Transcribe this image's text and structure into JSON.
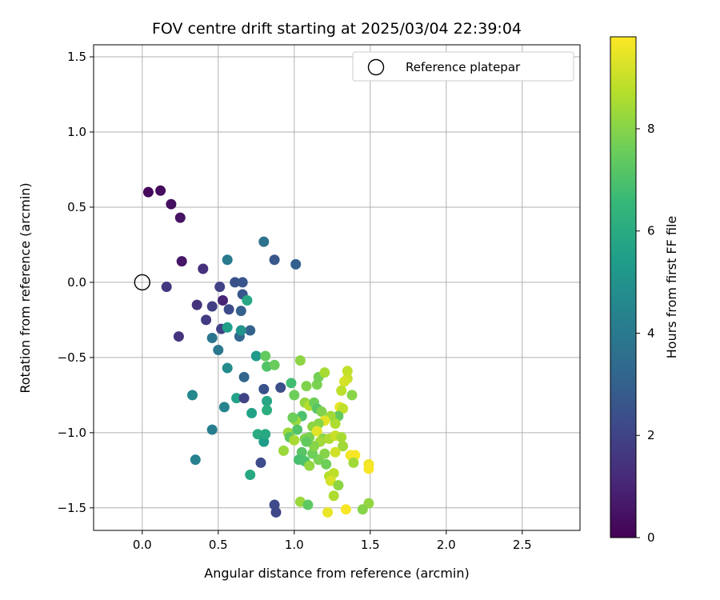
{
  "chart_data": {
    "type": "scatter",
    "title": "FOV centre drift starting at 2025/03/04 22:39:04",
    "xlabel": "Angular distance from reference (arcmin)",
    "ylabel": "Rotation from reference (arcmin)",
    "xlim": [
      -0.32,
      2.88
    ],
    "ylim": [
      -1.65,
      1.58
    ],
    "xticks": [
      "0.0",
      "0.5",
      "1.0",
      "1.5",
      "2.0",
      "2.5"
    ],
    "xtick_values": [
      0,
      0.5,
      1,
      1.5,
      2,
      2.5
    ],
    "yticks": [
      "1.5",
      "1.0",
      "0.5",
      "0.0",
      "−0.5",
      "−1.0",
      "−1.5"
    ],
    "ytick_values": [
      1.5,
      1.0,
      0.5,
      0.0,
      -0.5,
      -1.0,
      -1.5
    ],
    "grid": true,
    "legend": {
      "placement": "top-right",
      "entries": [
        "Reference platepar"
      ]
    },
    "reference_point": {
      "x": 0.0,
      "y": 0.0
    },
    "colorbar": {
      "label": "Hours from first FF file",
      "range": [
        0,
        9.8
      ],
      "ticks": [
        "0",
        "2",
        "4",
        "6",
        "8"
      ],
      "tick_values": [
        0,
        2,
        4,
        6,
        8
      ],
      "colormap": [
        "#440154",
        "#482878",
        "#3e4989",
        "#31688e",
        "#26828e",
        "#1f9e89",
        "#35b779",
        "#6ece58",
        "#b5de2b",
        "#fde725"
      ]
    },
    "points": [
      {
        "x": 0.04,
        "y": 0.6,
        "c": 0.2
      },
      {
        "x": 0.12,
        "y": 0.61,
        "c": 0.3
      },
      {
        "x": 0.19,
        "y": 0.52,
        "c": 0.4
      },
      {
        "x": 0.25,
        "y": 0.43,
        "c": 0.5
      },
      {
        "x": 0.26,
        "y": 0.14,
        "c": 0.6
      },
      {
        "x": 0.16,
        "y": -0.03,
        "c": 1.6
      },
      {
        "x": 0.4,
        "y": 0.09,
        "c": 1.4
      },
      {
        "x": 0.36,
        "y": -0.15,
        "c": 1.5
      },
      {
        "x": 0.42,
        "y": -0.25,
        "c": 1.7
      },
      {
        "x": 0.46,
        "y": -0.16,
        "c": 1.8
      },
      {
        "x": 0.24,
        "y": -0.36,
        "c": 1.5
      },
      {
        "x": 0.51,
        "y": -0.03,
        "c": 1.9
      },
      {
        "x": 0.53,
        "y": -0.12,
        "c": 1.0
      },
      {
        "x": 0.52,
        "y": -0.31,
        "c": 1.9
      },
      {
        "x": 0.57,
        "y": -0.18,
        "c": 2.3
      },
      {
        "x": 0.61,
        "y": 0.0,
        "c": 2.5
      },
      {
        "x": 0.66,
        "y": 0.0,
        "c": 2.6
      },
      {
        "x": 0.66,
        "y": -0.08,
        "c": 2.6
      },
      {
        "x": 0.65,
        "y": -0.19,
        "c": 3.0
      },
      {
        "x": 0.56,
        "y": 0.15,
        "c": 4.0
      },
      {
        "x": 0.46,
        "y": -0.37,
        "c": 3.8
      },
      {
        "x": 0.5,
        "y": -0.45,
        "c": 3.9
      },
      {
        "x": 0.64,
        "y": -0.36,
        "c": 3.2
      },
      {
        "x": 0.71,
        "y": -0.32,
        "c": 3.1
      },
      {
        "x": 0.69,
        "y": -0.12,
        "c": 5.8
      },
      {
        "x": 0.56,
        "y": -0.3,
        "c": 5.5
      },
      {
        "x": 0.65,
        "y": -0.32,
        "c": 5.0
      },
      {
        "x": 0.56,
        "y": -0.57,
        "c": 4.7
      },
      {
        "x": 0.67,
        "y": -0.63,
        "c": 3.2
      },
      {
        "x": 0.75,
        "y": -0.49,
        "c": 5.3
      },
      {
        "x": 0.8,
        "y": 0.27,
        "c": 3.7
      },
      {
        "x": 0.87,
        "y": 0.15,
        "c": 2.7
      },
      {
        "x": 1.01,
        "y": 0.12,
        "c": 3.0
      },
      {
        "x": 0.33,
        "y": -0.75,
        "c": 4.6
      },
      {
        "x": 0.54,
        "y": -0.83,
        "c": 4.4
      },
      {
        "x": 0.46,
        "y": -0.98,
        "c": 4.2
      },
      {
        "x": 0.35,
        "y": -1.18,
        "c": 4.3
      },
      {
        "x": 0.62,
        "y": -0.77,
        "c": 5.6
      },
      {
        "x": 0.67,
        "y": -0.77,
        "c": 2.0
      },
      {
        "x": 0.72,
        "y": -0.87,
        "c": 5.6
      },
      {
        "x": 0.76,
        "y": -1.01,
        "c": 6.0
      },
      {
        "x": 0.8,
        "y": -1.06,
        "c": 5.4
      },
      {
        "x": 0.81,
        "y": -1.01,
        "c": 5.9
      },
      {
        "x": 0.78,
        "y": -1.2,
        "c": 2.3
      },
      {
        "x": 0.71,
        "y": -1.28,
        "c": 5.9
      },
      {
        "x": 0.8,
        "y": -0.71,
        "c": 2.5
      },
      {
        "x": 0.82,
        "y": -0.79,
        "c": 5.8
      },
      {
        "x": 0.82,
        "y": -0.85,
        "c": 6.1
      },
      {
        "x": 0.81,
        "y": -0.49,
        "c": 7.4
      },
      {
        "x": 0.82,
        "y": -0.56,
        "c": 7.1
      },
      {
        "x": 0.87,
        "y": -0.55,
        "c": 7.5
      },
      {
        "x": 0.91,
        "y": -0.7,
        "c": 2.4
      },
      {
        "x": 0.87,
        "y": -1.48,
        "c": 2.2
      },
      {
        "x": 0.88,
        "y": -1.53,
        "c": 2.1
      },
      {
        "x": 0.98,
        "y": -0.67,
        "c": 6.8
      },
      {
        "x": 1.04,
        "y": -0.52,
        "c": 8.1
      },
      {
        "x": 1.0,
        "y": -0.75,
        "c": 7.6
      },
      {
        "x": 1.08,
        "y": -0.69,
        "c": 7.9
      },
      {
        "x": 1.15,
        "y": -0.68,
        "c": 7.8
      },
      {
        "x": 1.16,
        "y": -0.63,
        "c": 7.7
      },
      {
        "x": 1.2,
        "y": -0.6,
        "c": 8.5
      },
      {
        "x": 1.35,
        "y": -0.59,
        "c": 8.9
      },
      {
        "x": 1.35,
        "y": -0.64,
        "c": 9.0
      },
      {
        "x": 1.33,
        "y": -0.66,
        "c": 9.2
      },
      {
        "x": 1.31,
        "y": -0.72,
        "c": 8.8
      },
      {
        "x": 1.38,
        "y": -0.75,
        "c": 8.0
      },
      {
        "x": 1.07,
        "y": -0.8,
        "c": 8.2
      },
      {
        "x": 1.1,
        "y": -0.82,
        "c": 8.7
      },
      {
        "x": 1.13,
        "y": -0.8,
        "c": 7.6
      },
      {
        "x": 1.15,
        "y": -0.84,
        "c": 7.2
      },
      {
        "x": 1.18,
        "y": -0.86,
        "c": 7.9
      },
      {
        "x": 1.3,
        "y": -0.83,
        "c": 9.5
      },
      {
        "x": 1.32,
        "y": -0.84,
        "c": 8.9
      },
      {
        "x": 1.29,
        "y": -0.89,
        "c": 7.4
      },
      {
        "x": 1.27,
        "y": -0.94,
        "c": 8.6
      },
      {
        "x": 1.24,
        "y": -0.89,
        "c": 8.4
      },
      {
        "x": 1.2,
        "y": -0.92,
        "c": 9.4
      },
      {
        "x": 1.16,
        "y": -0.94,
        "c": 8.0
      },
      {
        "x": 1.12,
        "y": -0.96,
        "c": 8.1
      },
      {
        "x": 1.05,
        "y": -0.89,
        "c": 7.0
      },
      {
        "x": 1.01,
        "y": -0.92,
        "c": 8.3
      },
      {
        "x": 0.99,
        "y": -0.9,
        "c": 7.6
      },
      {
        "x": 0.96,
        "y": -1.0,
        "c": 8.3
      },
      {
        "x": 0.97,
        "y": -1.03,
        "c": 7.3
      },
      {
        "x": 1.0,
        "y": -1.05,
        "c": 8.5
      },
      {
        "x": 1.02,
        "y": -0.98,
        "c": 7.1
      },
      {
        "x": 1.07,
        "y": -1.04,
        "c": 7.9
      },
      {
        "x": 1.1,
        "y": -1.03,
        "c": 7.8
      },
      {
        "x": 1.15,
        "y": -0.99,
        "c": 9.4
      },
      {
        "x": 1.19,
        "y": -1.04,
        "c": 8.0
      },
      {
        "x": 1.17,
        "y": -1.06,
        "c": 8.4
      },
      {
        "x": 1.23,
        "y": -1.04,
        "c": 8.6
      },
      {
        "x": 1.27,
        "y": -1.02,
        "c": 9.0
      },
      {
        "x": 1.31,
        "y": -1.03,
        "c": 8.5
      },
      {
        "x": 1.32,
        "y": -1.09,
        "c": 8.4
      },
      {
        "x": 1.27,
        "y": -1.13,
        "c": 9.1
      },
      {
        "x": 1.2,
        "y": -1.14,
        "c": 8.0
      },
      {
        "x": 1.16,
        "y": -1.18,
        "c": 7.8
      },
      {
        "x": 1.12,
        "y": -1.14,
        "c": 7.6
      },
      {
        "x": 1.05,
        "y": -1.13,
        "c": 7.2
      },
      {
        "x": 1.03,
        "y": -1.18,
        "c": 6.9
      },
      {
        "x": 1.07,
        "y": -1.19,
        "c": 7.0
      },
      {
        "x": 1.1,
        "y": -1.22,
        "c": 8.2
      },
      {
        "x": 1.21,
        "y": -1.21,
        "c": 7.6
      },
      {
        "x": 1.23,
        "y": -1.29,
        "c": 8.7
      },
      {
        "x": 1.26,
        "y": -1.27,
        "c": 8.8
      },
      {
        "x": 1.24,
        "y": -1.32,
        "c": 9.2
      },
      {
        "x": 1.29,
        "y": -1.35,
        "c": 8.1
      },
      {
        "x": 1.26,
        "y": -1.42,
        "c": 8.6
      },
      {
        "x": 1.37,
        "y": -1.15,
        "c": 9.6
      },
      {
        "x": 1.4,
        "y": -1.15,
        "c": 9.7
      },
      {
        "x": 1.39,
        "y": -1.2,
        "c": 8.4
      },
      {
        "x": 1.49,
        "y": -1.21,
        "c": 9.6
      },
      {
        "x": 1.49,
        "y": -1.24,
        "c": 9.7
      },
      {
        "x": 1.49,
        "y": -1.47,
        "c": 8.2
      },
      {
        "x": 1.45,
        "y": -1.51,
        "c": 8.0
      },
      {
        "x": 1.34,
        "y": -1.51,
        "c": 9.7
      },
      {
        "x": 1.22,
        "y": -1.53,
        "c": 9.5
      },
      {
        "x": 1.04,
        "y": -1.46,
        "c": 8.3
      },
      {
        "x": 1.09,
        "y": -1.48,
        "c": 7.3
      },
      {
        "x": 0.93,
        "y": -1.12,
        "c": 8.3
      },
      {
        "x": 1.13,
        "y": -1.09,
        "c": 8.0
      },
      {
        "x": 1.08,
        "y": -1.06,
        "c": 7.4
      }
    ]
  }
}
